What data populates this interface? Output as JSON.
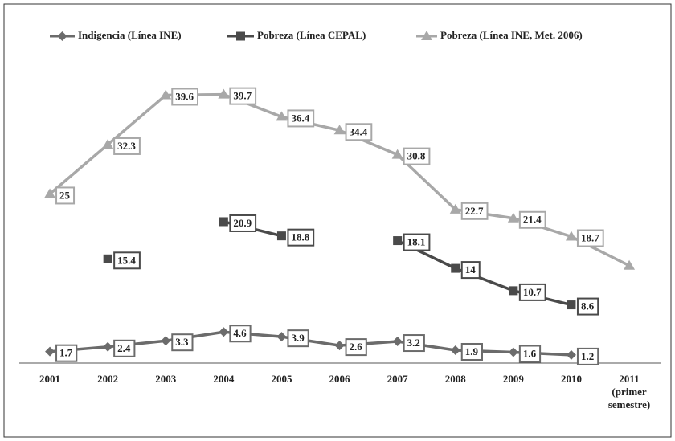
{
  "chart_data": {
    "type": "line",
    "categories": [
      "2001",
      "2002",
      "2003",
      "2004",
      "2005",
      "2006",
      "2007",
      "2008",
      "2009",
      "2010",
      "2011\n(primer\nsemestre)"
    ],
    "series": [
      {
        "name": "Indigencia (Línea INE)",
        "color": "#6b6b6b",
        "marker": "diamond",
        "values": [
          1.7,
          2.4,
          3.3,
          4.6,
          3.9,
          2.6,
          3.2,
          1.9,
          1.6,
          1.2,
          null
        ],
        "value_labels": [
          "1.7",
          "2.4",
          "3.3",
          "4.6",
          "3.9",
          "2.6",
          "3.2",
          "1.9",
          "1.6",
          "1.2",
          null
        ]
      },
      {
        "name": "Pobreza (Línea CEPAL)",
        "color": "#4a4a4a",
        "marker": "square",
        "values": [
          null,
          15.4,
          null,
          20.9,
          18.8,
          null,
          18.1,
          14,
          10.7,
          8.6,
          null
        ],
        "value_labels": [
          null,
          "15.4",
          null,
          "20.9",
          "18.8",
          null,
          "18.1",
          "14",
          "10.7",
          "8.6",
          null
        ]
      },
      {
        "name": "Pobreza (Línea INE, Met. 2006)",
        "color": "#a8a8a8",
        "marker": "triangle",
        "values": [
          25,
          32.3,
          39.6,
          39.7,
          36.4,
          34.4,
          30.8,
          22.7,
          21.4,
          18.7,
          14.4
        ],
        "value_labels": [
          "25",
          "32.3",
          "39.6",
          "39.7",
          "36.4",
          "34.4",
          "30.8",
          "22.7",
          "21.4",
          "18.7",
          null
        ]
      }
    ],
    "ylim": [
      0,
      45
    ]
  }
}
